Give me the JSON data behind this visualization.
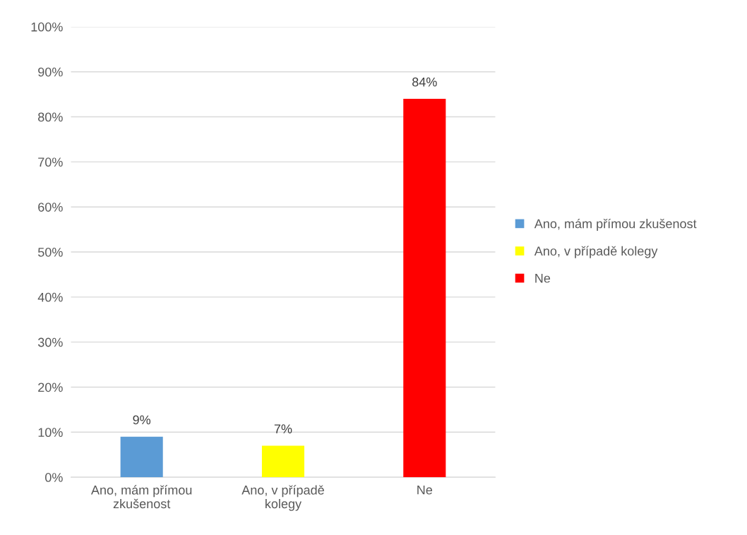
{
  "chart_data": {
    "type": "bar",
    "categories": [
      "Ano, mám přímou\nzkušenost",
      "Ano, v případě\nkolegy",
      "Ne"
    ],
    "series": [
      {
        "name": "Ano, mám přímou zkušenost",
        "color": "#5b9bd5",
        "values": [
          9,
          null,
          null
        ],
        "value_labels": [
          "9%",
          null,
          null
        ]
      },
      {
        "name": "Ano, v případě kolegy",
        "color": "#ffff00",
        "values": [
          null,
          7,
          null
        ],
        "value_labels": [
          null,
          "7%",
          null
        ]
      },
      {
        "name": "Ne",
        "color": "#ff0000",
        "values": [
          null,
          null,
          84
        ],
        "value_labels": [
          null,
          null,
          "84%"
        ]
      }
    ],
    "ylim": [
      0,
      100
    ],
    "yticks": [
      {
        "value": 0,
        "label": "0%"
      },
      {
        "value": 10,
        "label": "10%"
      },
      {
        "value": 20,
        "label": "20%"
      },
      {
        "value": 30,
        "label": "30%"
      },
      {
        "value": 40,
        "label": "40%"
      },
      {
        "value": 50,
        "label": "50%"
      },
      {
        "value": 60,
        "label": "60%"
      },
      {
        "value": 70,
        "label": "70%"
      },
      {
        "value": 80,
        "label": "80%"
      },
      {
        "value": 90,
        "label": "90%"
      },
      {
        "value": 100,
        "label": "100%"
      }
    ],
    "grid": "y",
    "legend": "right"
  }
}
